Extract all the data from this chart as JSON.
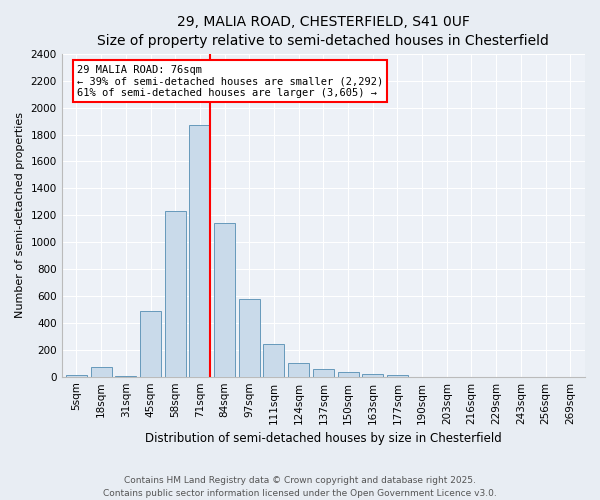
{
  "title": "29, MALIA ROAD, CHESTERFIELD, S41 0UF",
  "subtitle": "Size of property relative to semi-detached houses in Chesterfield",
  "xlabel": "Distribution of semi-detached houses by size in Chesterfield",
  "ylabel": "Number of semi-detached properties",
  "bar_labels": [
    "5sqm",
    "18sqm",
    "31sqm",
    "45sqm",
    "58sqm",
    "71sqm",
    "84sqm",
    "97sqm",
    "111sqm",
    "124sqm",
    "137sqm",
    "150sqm",
    "163sqm",
    "177sqm",
    "190sqm",
    "203sqm",
    "216sqm",
    "229sqm",
    "243sqm",
    "256sqm",
    "269sqm"
  ],
  "bar_values": [
    15,
    75,
    5,
    490,
    1230,
    1870,
    1140,
    580,
    240,
    105,
    60,
    35,
    20,
    10,
    0,
    0,
    0,
    0,
    0,
    0,
    0
  ],
  "bar_color": "#c9daea",
  "bar_edge_color": "#6699bb",
  "property_label": "29 MALIA ROAD: 76sqm",
  "pct_smaller": 39,
  "pct_larger": 61,
  "n_smaller": 2292,
  "n_larger": 3605,
  "vline_color": "red",
  "ylim": [
    0,
    2400
  ],
  "yticks": [
    0,
    200,
    400,
    600,
    800,
    1000,
    1200,
    1400,
    1600,
    1800,
    2000,
    2200,
    2400
  ],
  "annotation_box_color": "#ffffff",
  "annotation_box_edge": "red",
  "footer": "Contains HM Land Registry data © Crown copyright and database right 2025.\nContains public sector information licensed under the Open Government Licence v3.0.",
  "bg_color": "#e8edf3",
  "plot_bg_color": "#edf1f7",
  "grid_color": "#ffffff",
  "title_fontsize": 10,
  "subtitle_fontsize": 9,
  "xlabel_fontsize": 8.5,
  "ylabel_fontsize": 8,
  "tick_fontsize": 7.5,
  "annot_fontsize": 7.5,
  "footer_fontsize": 6.5
}
